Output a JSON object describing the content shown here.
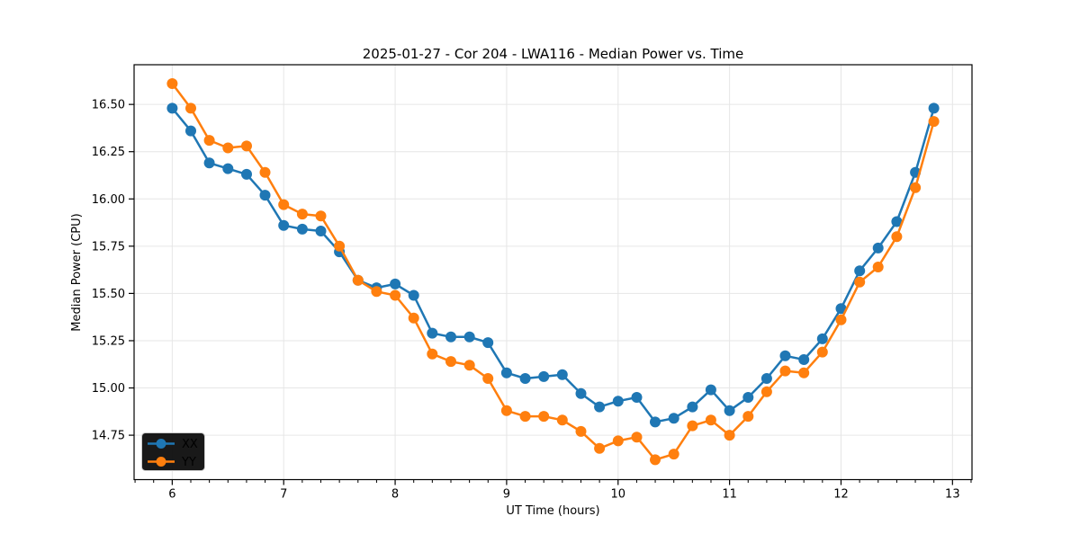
{
  "chart_data": {
    "type": "line",
    "title": "2025-01-27 - Cor 204 - LWA116 - Median Power vs. Time",
    "xlabel": "UT Time (hours)",
    "ylabel": "Median Power (CPU)",
    "xlim": [
      5.658,
      13.175
    ],
    "ylim": [
      14.515,
      16.71
    ],
    "xticks": [
      6,
      7,
      8,
      9,
      10,
      11,
      12,
      13
    ],
    "yticks": [
      14.75,
      15.0,
      15.25,
      15.5,
      15.75,
      16.0,
      16.25,
      16.5
    ],
    "grid": true,
    "minor_ticks_x_per_hour": 6,
    "legend_position": "lower-left",
    "x": [
      6.0,
      6.167,
      6.333,
      6.5,
      6.667,
      6.833,
      7.0,
      7.167,
      7.333,
      7.5,
      7.667,
      7.833,
      8.0,
      8.167,
      8.333,
      8.5,
      8.667,
      8.833,
      9.0,
      9.167,
      9.333,
      9.5,
      9.667,
      9.833,
      10.0,
      10.167,
      10.333,
      10.5,
      10.667,
      10.833,
      11.0,
      11.167,
      11.333,
      11.5,
      11.667,
      11.833,
      12.0,
      12.167,
      12.333,
      12.5,
      12.667,
      12.833
    ],
    "series": [
      {
        "name": "XX",
        "color": "#1f77b4",
        "values": [
          16.48,
          16.36,
          16.19,
          16.16,
          16.13,
          16.02,
          15.86,
          15.84,
          15.83,
          15.72,
          15.57,
          15.53,
          15.55,
          15.49,
          15.29,
          15.27,
          15.27,
          15.24,
          15.08,
          15.05,
          15.06,
          15.07,
          14.97,
          14.9,
          14.93,
          14.95,
          14.82,
          14.84,
          14.9,
          14.99,
          14.88,
          14.95,
          15.05,
          15.17,
          15.15,
          15.26,
          15.42,
          15.62,
          15.74,
          15.88,
          16.14,
          16.48
        ]
      },
      {
        "name": "YY",
        "color": "#ff7f0e",
        "values": [
          16.61,
          16.48,
          16.31,
          16.27,
          16.28,
          16.14,
          15.97,
          15.92,
          15.91,
          15.75,
          15.57,
          15.51,
          15.49,
          15.37,
          15.18,
          15.14,
          15.12,
          15.05,
          14.88,
          14.85,
          14.85,
          14.83,
          14.77,
          14.68,
          14.72,
          14.74,
          14.62,
          14.65,
          14.8,
          14.83,
          14.75,
          14.85,
          14.98,
          15.09,
          15.08,
          15.19,
          15.36,
          15.56,
          15.64,
          15.8,
          16.06,
          16.41
        ]
      }
    ],
    "colors": {
      "grid": "#e6e6e6",
      "spine": "#000000",
      "legend_border": "#cccccc",
      "legend_bg": "#ffffff"
    }
  }
}
